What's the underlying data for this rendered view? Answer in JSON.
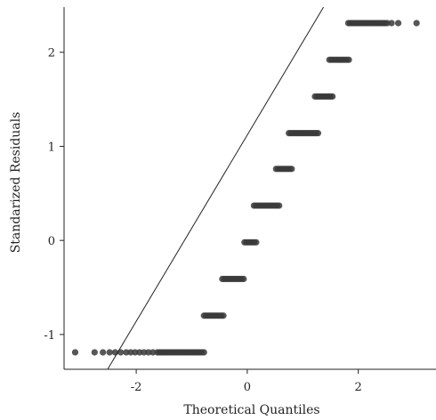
{
  "chart_data": {
    "type": "scatter",
    "title": "",
    "xlabel": "Theoretical Quantiles",
    "ylabel": "Standarized Residuals",
    "xlim": [
      -3.3,
      3.4
    ],
    "ylim": [
      -1.37,
      2.48
    ],
    "x_ticks": [
      {
        "value": -2,
        "label": "-2"
      },
      {
        "value": 0,
        "label": "0"
      },
      {
        "value": 2,
        "label": "2"
      }
    ],
    "y_ticks": [
      {
        "value": -1,
        "label": "-1"
      },
      {
        "value": 0,
        "label": "0"
      },
      {
        "value": 1,
        "label": "1"
      },
      {
        "value": 2,
        "label": "2"
      }
    ],
    "grid": false,
    "reference_line": {
      "slope": 0.99,
      "intercept": 1.12
    },
    "clusters": [
      {
        "y": -1.19,
        "x_from": -1.62,
        "x_to": -0.75,
        "outliers_x": [
          -3.1,
          -2.75,
          -2.6,
          -2.48,
          -2.38,
          -2.28,
          -2.18,
          -2.1,
          -2.02,
          -1.94,
          -1.86,
          -1.78,
          -1.7
        ]
      },
      {
        "y": -0.8,
        "x_from": -0.78,
        "x_to": -0.42,
        "outliers_x": []
      },
      {
        "y": -0.41,
        "x_from": -0.45,
        "x_to": -0.05,
        "outliers_x": []
      },
      {
        "y": -0.02,
        "x_from": -0.05,
        "x_to": 0.18,
        "outliers_x": []
      },
      {
        "y": 0.37,
        "x_from": 0.12,
        "x_to": 0.58,
        "outliers_x": []
      },
      {
        "y": 0.76,
        "x_from": 0.52,
        "x_to": 0.8,
        "outliers_x": []
      },
      {
        "y": 1.14,
        "x_from": 0.75,
        "x_to": 1.28,
        "outliers_x": []
      },
      {
        "y": 1.53,
        "x_from": 1.22,
        "x_to": 1.55,
        "outliers_x": []
      },
      {
        "y": 1.92,
        "x_from": 1.48,
        "x_to": 1.85,
        "outliers_x": []
      },
      {
        "y": 2.31,
        "x_from": 1.82,
        "x_to": 2.55,
        "outliers_x": [
          2.6,
          2.72,
          3.05
        ]
      }
    ]
  }
}
